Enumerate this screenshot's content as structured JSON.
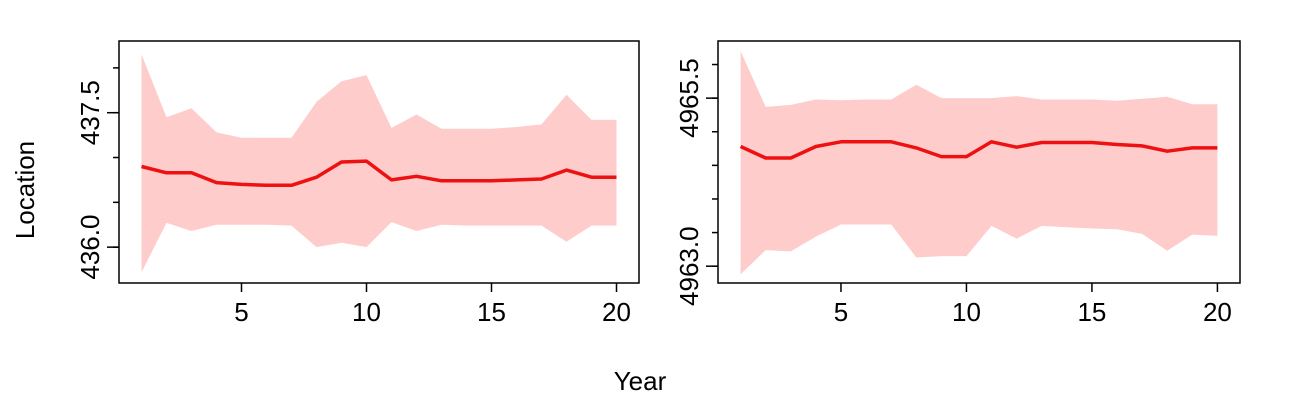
{
  "figure": {
    "xlabel": "Year",
    "ylabel": "Location"
  },
  "colors": {
    "line": "#ee1111",
    "band": "#ffcccc",
    "axis": "#000000"
  },
  "chart_data": [
    {
      "type": "line",
      "x": [
        1,
        2,
        3,
        4,
        5,
        6,
        7,
        8,
        9,
        10,
        11,
        12,
        13,
        14,
        15,
        16,
        17,
        18,
        19,
        20
      ],
      "series": [
        {
          "values": [
            436.9,
            436.83,
            436.83,
            436.72,
            436.7,
            436.69,
            436.69,
            436.78,
            436.95,
            436.96,
            436.75,
            436.79,
            436.74,
            436.74,
            436.74,
            436.75,
            436.76,
            436.86,
            436.78,
            436.78
          ],
          "lower": [
            435.72,
            436.27,
            436.18,
            436.25,
            436.25,
            436.25,
            436.24,
            436.0,
            436.05,
            436.0,
            436.28,
            436.18,
            436.25,
            436.24,
            436.24,
            436.24,
            436.24,
            436.06,
            436.24,
            436.24
          ],
          "upper": [
            438.15,
            437.45,
            437.55,
            437.28,
            437.22,
            437.22,
            437.22,
            437.62,
            437.85,
            437.92,
            437.33,
            437.48,
            437.32,
            437.32,
            437.32,
            437.34,
            437.37,
            437.7,
            437.42,
            437.42
          ]
        }
      ],
      "xlim": [
        0.1,
        20.9
      ],
      "ylim": [
        435.6,
        438.3
      ],
      "xticks": [
        5,
        10,
        15,
        20
      ],
      "xtick_labels": [
        "5",
        "10",
        "15",
        "20"
      ],
      "yticks_minor": [
        436.0,
        436.5,
        437.0,
        437.5,
        438.0
      ],
      "yticks_labeled": [
        436.0,
        437.5
      ],
      "ytick_labels": [
        "436.0",
        "437.5"
      ]
    },
    {
      "type": "line",
      "x": [
        1,
        2,
        3,
        4,
        5,
        6,
        7,
        8,
        9,
        10,
        11,
        12,
        13,
        14,
        15,
        16,
        17,
        18,
        19,
        20
      ],
      "series": [
        {
          "values": [
            4964.78,
            4964.61,
            4964.61,
            4964.78,
            4964.85,
            4964.85,
            4964.85,
            4964.76,
            4964.63,
            4964.63,
            4964.85,
            4964.77,
            4964.84,
            4964.84,
            4964.84,
            4964.81,
            4964.79,
            4964.71,
            4964.76,
            4964.76
          ],
          "lower": [
            4962.88,
            4963.24,
            4963.22,
            4963.44,
            4963.62,
            4963.62,
            4963.62,
            4963.13,
            4963.15,
            4963.15,
            4963.6,
            4963.41,
            4963.6,
            4963.58,
            4963.56,
            4963.55,
            4963.48,
            4963.23,
            4963.47,
            4963.45
          ],
          "upper": [
            4966.2,
            4965.37,
            4965.4,
            4965.48,
            4965.47,
            4965.48,
            4965.48,
            4965.7,
            4965.5,
            4965.5,
            4965.5,
            4965.53,
            4965.48,
            4965.48,
            4965.48,
            4965.46,
            4965.49,
            4965.52,
            4965.41,
            4965.41
          ]
        }
      ],
      "xlim": [
        0.1,
        20.9
      ],
      "ylim": [
        4962.75,
        4966.35
      ],
      "xticks": [
        5,
        10,
        15,
        20
      ],
      "xtick_labels": [
        "5",
        "10",
        "15",
        "20"
      ],
      "yticks_minor": [
        4963.0,
        4963.5,
        4964.0,
        4964.5,
        4965.0,
        4965.5,
        4966.0
      ],
      "yticks_labeled": [
        4963.0,
        4965.5
      ],
      "ytick_labels": [
        "4963.0",
        "4965.5"
      ]
    }
  ]
}
